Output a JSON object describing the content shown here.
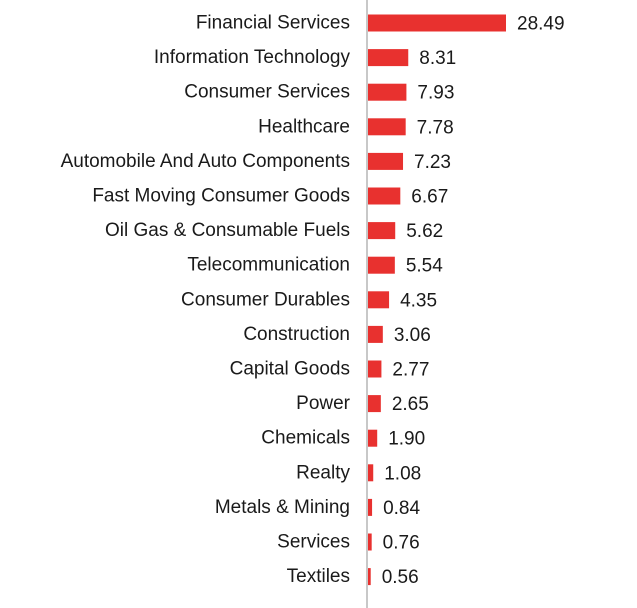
{
  "chart_data": {
    "type": "bar",
    "orientation": "horizontal",
    "categories": [
      "Financial Services",
      "Information Technology",
      "Consumer Services",
      "Healthcare",
      "Automobile And Auto Components",
      "Fast Moving Consumer Goods",
      "Oil Gas & Consumable Fuels",
      "Telecommunication",
      "Consumer Durables",
      "Construction",
      "Capital Goods",
      "Power",
      "Chemicals",
      "Realty",
      "Metals & Mining",
      "Services",
      "Textiles"
    ],
    "values": [
      28.49,
      8.31,
      7.93,
      7.78,
      7.23,
      6.67,
      5.62,
      5.54,
      4.35,
      3.06,
      2.77,
      2.65,
      1.9,
      1.08,
      0.84,
      0.76,
      0.56
    ],
    "value_labels": [
      "28.49",
      "8.31",
      "7.93",
      "7.78",
      "7.23",
      "6.67",
      "5.62",
      "5.54",
      "4.35",
      "3.06",
      "2.77",
      "2.65",
      "1.90",
      "1.08",
      "0.84",
      "0.76",
      "0.56"
    ],
    "title": "",
    "xlabel": "",
    "ylabel": "",
    "xlim": [
      0,
      28.49
    ],
    "grid": false,
    "legend": "none",
    "bar_color": "#e8312f",
    "axis_color": "#c8c8c8"
  }
}
